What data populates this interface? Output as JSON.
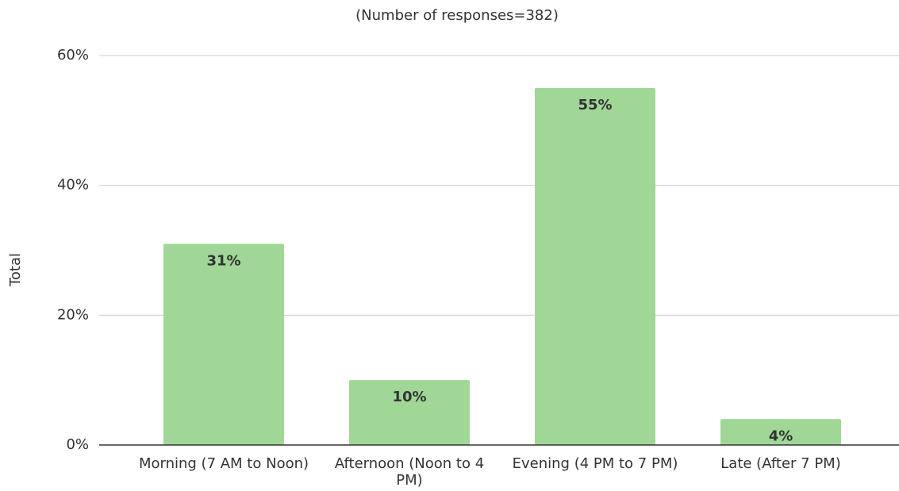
{
  "chart_data": {
    "type": "bar",
    "subtitle": "(Number of responses=382)",
    "y_label": "Total",
    "categories": [
      "Morning (7 AM to Noon)",
      "Afternoon (Noon to 4 PM)",
      "Evening (4 PM to 7 PM)",
      "Late (After 7 PM)"
    ],
    "values": [
      31,
      10,
      55,
      4
    ],
    "value_labels": [
      "31%",
      "10%",
      "55%",
      "4%"
    ],
    "color": "#a0d796",
    "ylim": [
      0,
      60
    ],
    "yticks": [
      {
        "value": 0,
        "label": "0%"
      },
      {
        "value": 20,
        "label": "20%"
      },
      {
        "value": 40,
        "label": "40%"
      },
      {
        "value": 60,
        "label": "60%"
      }
    ],
    "grid": true
  }
}
